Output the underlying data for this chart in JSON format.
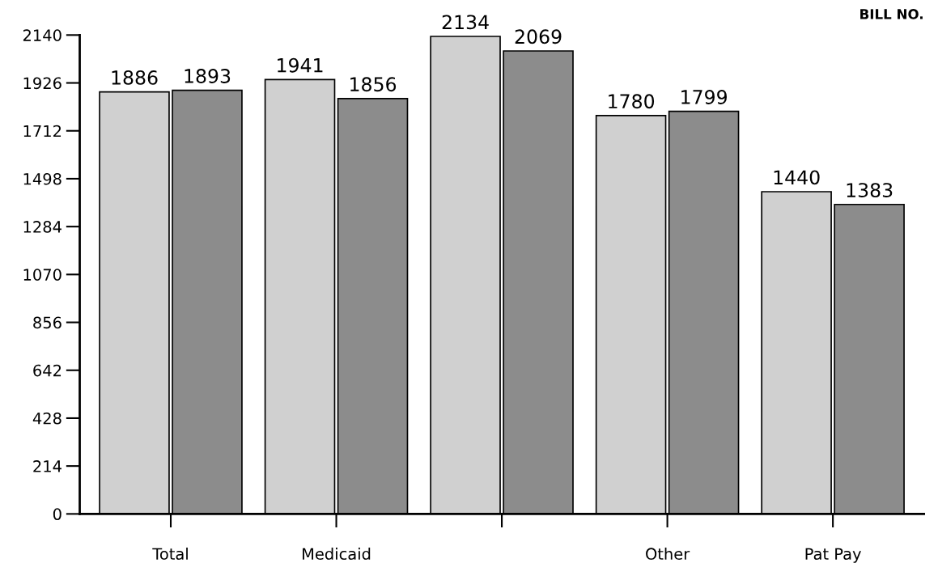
{
  "chart_data": {
    "type": "bar",
    "categories": [
      "Total",
      "Medicaid",
      null,
      "Other",
      "Pat Pay"
    ],
    "series": [
      {
        "color": "#d0d0d0",
        "values": [
          1886,
          1941,
          2134,
          1780,
          1440
        ]
      },
      {
        "color": "#8c8c8c",
        "values": [
          1893,
          1856,
          2069,
          1799,
          1383
        ]
      }
    ],
    "ylim": [
      0,
      2140
    ],
    "yticks": [
      0,
      214,
      428,
      642,
      856,
      1070,
      1284,
      1498,
      1712,
      1926,
      2140
    ],
    "data_labels": true,
    "grid": false,
    "legend": false,
    "annotations": [
      "BILL NO."
    ]
  }
}
